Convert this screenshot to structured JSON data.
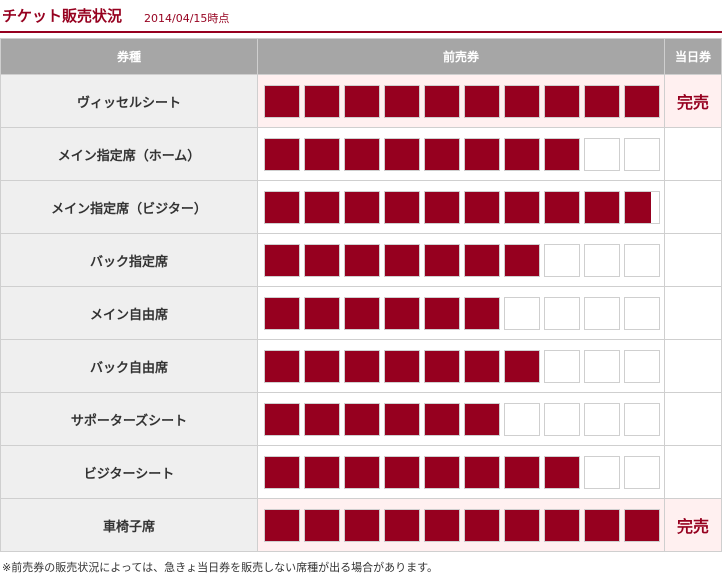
{
  "header": {
    "title": "チケット販売状況",
    "as_of": "2014/04/15時点"
  },
  "table": {
    "col_ticket_type": "券種",
    "col_presale": "前売券",
    "col_same_day": "当日券",
    "boxes_per_row": 10,
    "rows": [
      {
        "name": "ヴィッセルシート",
        "presale_filled_boxes": 10,
        "same_day": "完売"
      },
      {
        "name": "メイン指定席（ホーム）",
        "presale_filled_boxes": 8,
        "same_day": ""
      },
      {
        "name": "メイン指定席（ビジター）",
        "presale_filled_boxes": 9.75,
        "same_day": ""
      },
      {
        "name": "バック指定席",
        "presale_filled_boxes": 7,
        "same_day": ""
      },
      {
        "name": "メイン自由席",
        "presale_filled_boxes": 6,
        "same_day": ""
      },
      {
        "name": "バック自由席",
        "presale_filled_boxes": 7,
        "same_day": ""
      },
      {
        "name": "サポーターズシート",
        "presale_filled_boxes": 6,
        "same_day": ""
      },
      {
        "name": "ビジターシート",
        "presale_filled_boxes": 8,
        "same_day": ""
      },
      {
        "name": "車椅子席",
        "presale_filled_boxes": 10,
        "same_day": "完売"
      }
    ]
  },
  "footnote": "※前売券の販売状況によっては、急きょ当日券を販売しない席種が出る場合があります。",
  "colors": {
    "accent": "#96001f",
    "header_bg": "#a6a6a6",
    "label_bg": "#efefef",
    "soldout_bg": "#fff0f0",
    "border": "#cfcfcf"
  }
}
